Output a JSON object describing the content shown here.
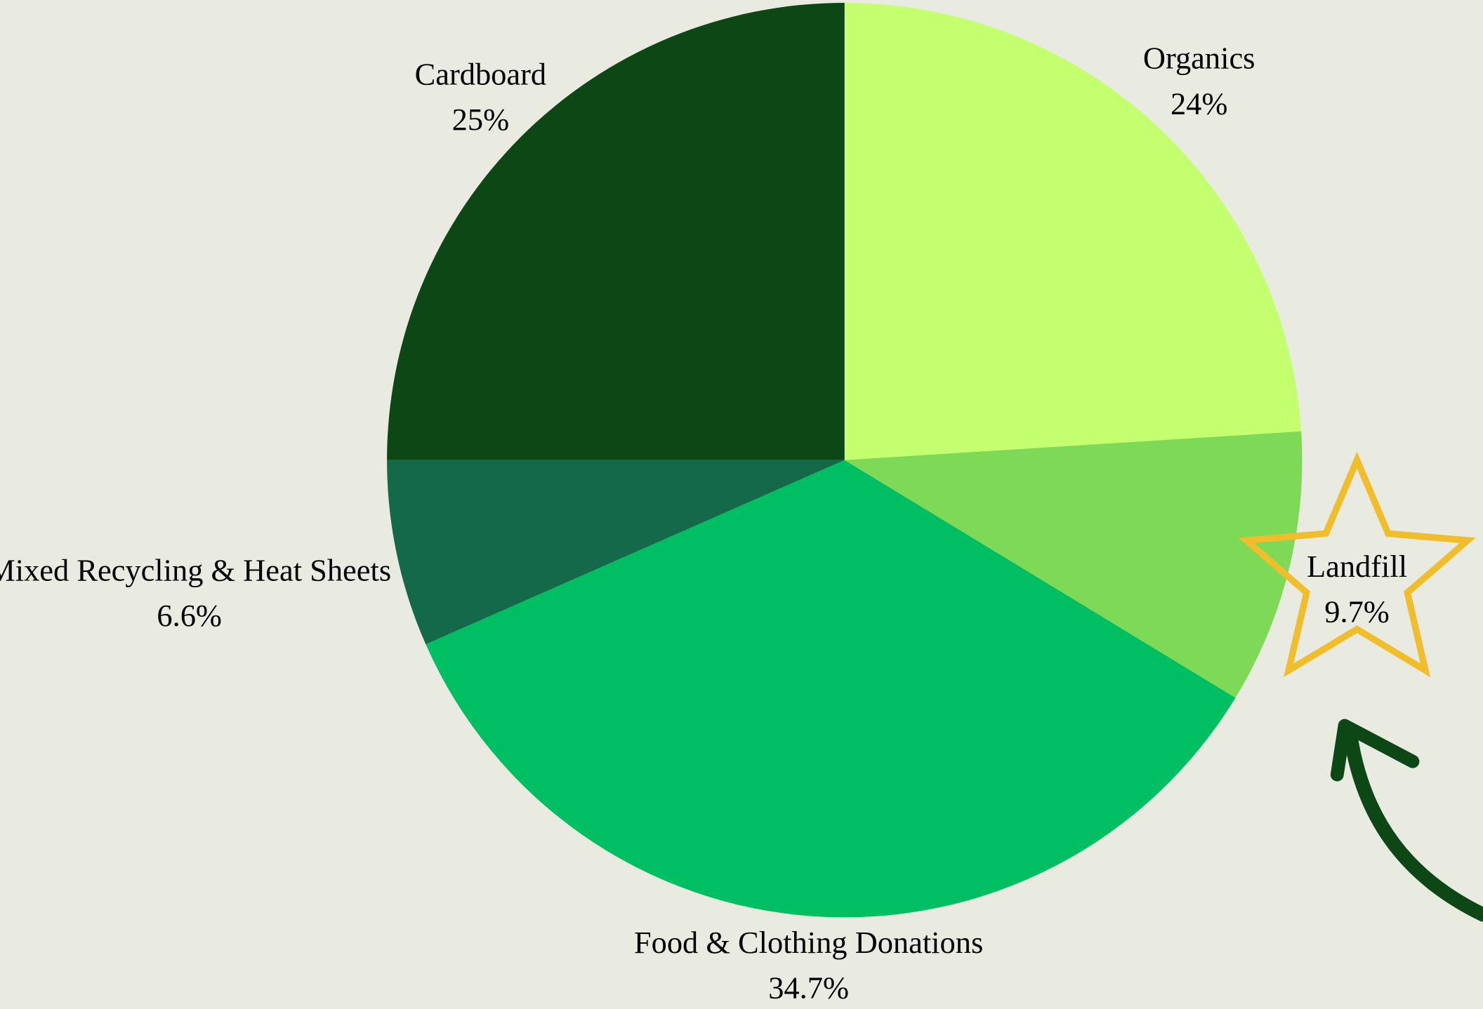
{
  "chart_data": {
    "type": "pie",
    "categories": [
      "Organics",
      "Landfill",
      "Food & Clothing Donations",
      "Mixed Recycling & Heat Sheets",
      "Cardboard"
    ],
    "values": [
      24,
      9.7,
      34.7,
      6.6,
      25
    ],
    "value_labels": [
      "24%",
      "9.7%",
      "34.7%",
      "6.6%",
      "25%"
    ],
    "colors": [
      "#c3ff6e",
      "#7ed957",
      "#00bf63",
      "#14694b",
      "#0e4716"
    ]
  }
}
